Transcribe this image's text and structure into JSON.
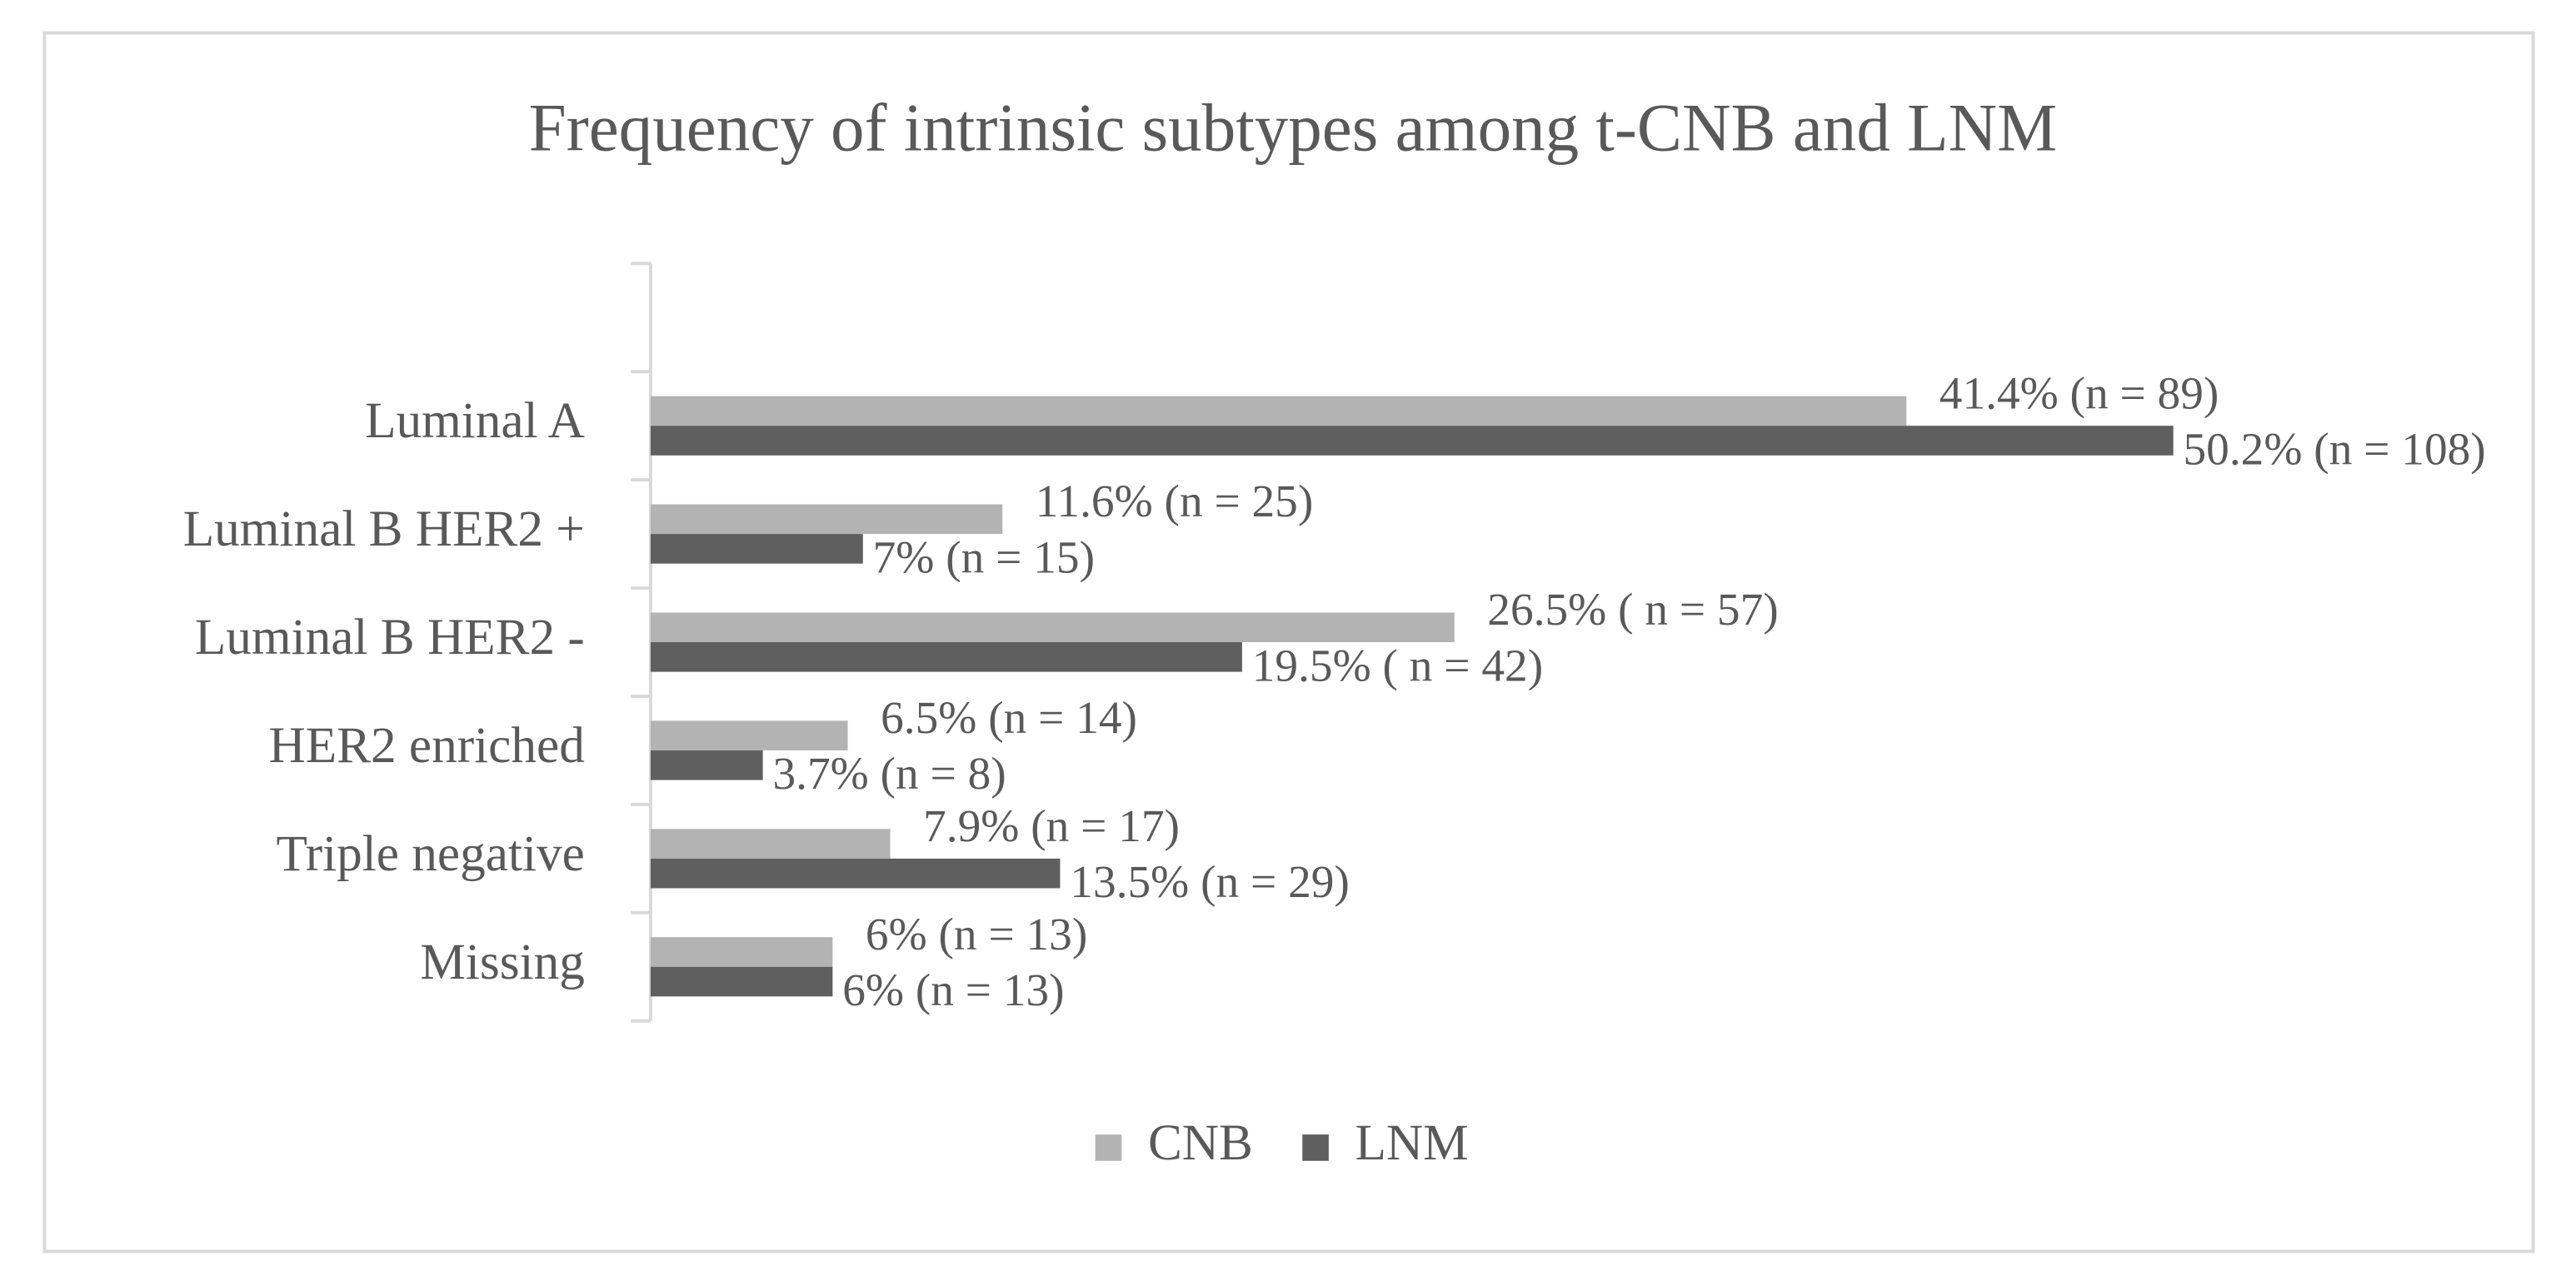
{
  "chart_data": {
    "type": "hbar",
    "title": "Frequency of intrinsic subtypes among t-CNB and LNM",
    "categories": [
      null,
      "Luminal A",
      "Luminal B HER2 +",
      "Luminal B HER2 -",
      "HER2 enriched",
      "Triple negative",
      "Missing"
    ],
    "xlim": [
      0,
      60
    ],
    "legend": "bottom",
    "series": [
      {
        "name": "CNB",
        "color": "#b3b3b3",
        "values": [
          null,
          41.4,
          11.6,
          26.5,
          6.5,
          7.9,
          6
        ],
        "value_labels": [
          null,
          "41.4% (n = 89)",
          "11.6% (n = 25)",
          "26.5% ( n = 57)",
          "6.5% (n = 14)",
          "7.9% (n = 17)",
          "6% (n = 13)"
        ]
      },
      {
        "name": "LNM",
        "color": "#5f5f5f",
        "values": [
          null,
          50.2,
          7,
          19.5,
          3.7,
          13.5,
          6
        ],
        "value_labels": [
          null,
          "50.2% (n = 108)",
          "7% (n = 15)",
          "19.5% ( n = 42)",
          "3.7% (n = 8)",
          "13.5% (n = 29)",
          "6% (n = 13)"
        ]
      }
    ]
  }
}
